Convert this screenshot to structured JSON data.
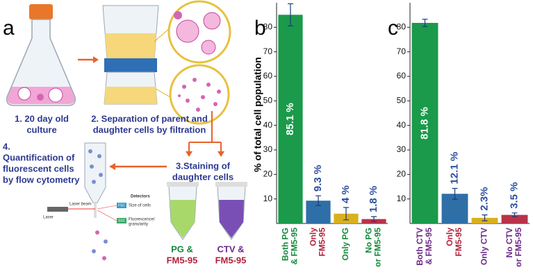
{
  "diagram": {
    "panel": "a",
    "steps": [
      [
        "1. 20 day old",
        "culture"
      ],
      [
        "2. Separation of parent and",
        "daughter cells by filtration"
      ],
      [
        "3.Staining of",
        "daughter cells"
      ],
      [
        "4.",
        "Quantification of",
        "fluorescent cells",
        "by flow cytometry"
      ]
    ],
    "detectors": "Detectors",
    "laser_beam": "Laser beam",
    "laser": "Laser",
    "fsc": "FSC",
    "fsc_text": "Size of cells",
    "ssc": "SSC",
    "ssc_text": [
      "Fluorescence/",
      "granularity"
    ],
    "tubes": [
      [
        "PG &",
        "FM5-95"
      ],
      [
        "CTV &",
        "FM5-95"
      ]
    ]
  },
  "chart_data": [
    {
      "type": "bar",
      "panel": "b",
      "ylabel": "% of total cell population",
      "categories": [
        [
          "Both PG",
          "& FM5-95"
        ],
        [
          "Only",
          "FM5-95"
        ],
        [
          "Only PG"
        ],
        [
          "No PG",
          "or FM5-95"
        ]
      ],
      "category_colors": [
        "#138a3c",
        "#b2223c",
        "#138a3c",
        "#138a3c"
      ],
      "values": [
        85.1,
        9.3,
        4,
        1.8
      ],
      "errors": [
        4.5,
        2,
        2.5,
        1
      ],
      "value_labels": [
        "85.1 %",
        "9.3 %",
        "4 %",
        "1.8 %"
      ],
      "colors": [
        "#1a9a4a",
        "#2f6fa7",
        "#d8b020",
        "#b8334a"
      ],
      "ylim": [
        0,
        90
      ],
      "yticks": [
        10,
        20,
        30,
        40,
        50,
        60,
        70,
        80
      ]
    },
    {
      "type": "bar",
      "panel": "c",
      "categories": [
        [
          "Both CTV",
          "& FM5-95"
        ],
        [
          "Only",
          "FM5-95"
        ],
        [
          "Only CTV"
        ],
        [
          "No CTV",
          "or FM5-95"
        ]
      ],
      "category_colors": [
        "#6b2a8a",
        "#b2223c",
        "#6b2a8a",
        "#6b2a8a"
      ],
      "values": [
        81.8,
        12.1,
        2.3,
        3.5
      ],
      "errors": [
        1.5,
        2.2,
        1.2,
        0.8
      ],
      "value_labels": [
        "81.8 %",
        "12.1 %",
        "2.3%",
        "3.5 %"
      ],
      "colors": [
        "#1a9a4a",
        "#2f6fa7",
        "#d8b020",
        "#b8334a"
      ],
      "ylim": [
        0,
        90
      ],
      "yticks": [
        10,
        20,
        30,
        40,
        50,
        60,
        70,
        80
      ]
    }
  ]
}
